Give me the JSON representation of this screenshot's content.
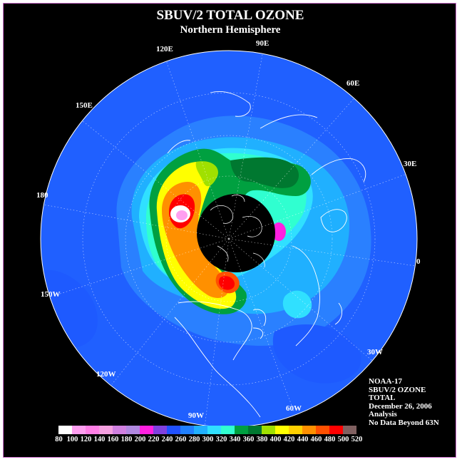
{
  "title": "SBUV/2 TOTAL OZONE",
  "subtitle": "Northern Hemisphere",
  "longitude_labels": {
    "lon_90E": "90E",
    "lon_60E": "60E",
    "lon_30E": "30E",
    "lon_0": "0",
    "lon_30W": "30W",
    "lon_60W": "60W",
    "lon_90W": "90W",
    "lon_120W": "120W",
    "lon_150W": "150W",
    "lon_180": "180",
    "lon_150E": "150E",
    "lon_120E": "120E"
  },
  "info": {
    "satellite": "NOAA-17",
    "instrument": "SBUV/2 OZONE",
    "quantity": "TOTAL",
    "date": "December 26, 2006",
    "type": "Analysis",
    "note": "No Data Beyond 63N"
  },
  "colorbar": {
    "ticks": [
      "80",
      "100",
      "120",
      "140",
      "160",
      "180",
      "200",
      "220",
      "240",
      "260",
      "280",
      "300",
      "320",
      "340",
      "360",
      "380",
      "400",
      "420",
      "440",
      "460",
      "480",
      "500",
      "520"
    ],
    "colors": [
      "#ffffff",
      "#ff9ff0",
      "#ff80e6",
      "#f4a0e0",
      "#d080e0",
      "#b088e0",
      "#ff20e0",
      "#8040e0",
      "#2050ff",
      "#2080ff",
      "#20b0ff",
      "#30e0ff",
      "#30ffd0",
      "#00a040",
      "#007830",
      "#a0e000",
      "#ffff00",
      "#ffd000",
      "#ff9000",
      "#ff5000",
      "#ff0000",
      "#806060"
    ]
  },
  "colors": {
    "background": "#000000",
    "ocean_field": "#2060ff",
    "frame_border": "#d070d0"
  }
}
